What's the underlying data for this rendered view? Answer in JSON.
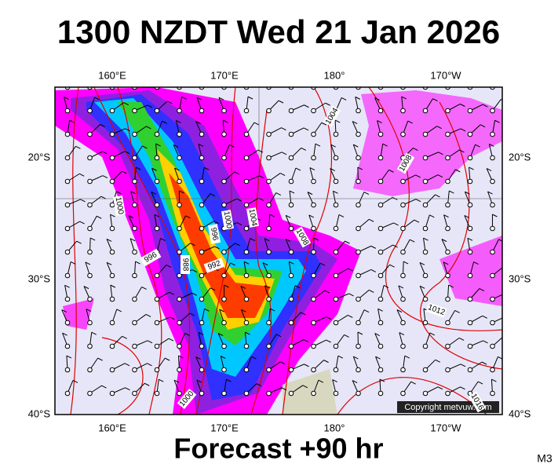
{
  "title": "1300 NZDT Wed 21 Jan 2026",
  "map": {
    "top_labels": [
      "160°E",
      "170°E",
      "180°",
      "170°W"
    ],
    "bottom_labels": [
      "160°E",
      "170°E",
      "180°",
      "170°W"
    ],
    "left_labels": [
      "20°S",
      "30°S",
      "40°S"
    ],
    "right_labels": [
      "20°S",
      "30°S",
      "40°S"
    ],
    "isobar_labels": [
      "1004",
      "1008",
      "1000",
      "1000",
      "1004",
      "996",
      "1008",
      "996",
      "988",
      "992",
      "1012",
      "1000",
      "1016"
    ],
    "copyright": "Copyright metvuw.com"
  },
  "footer": "Forecast +90 hr",
  "code": "M3"
}
